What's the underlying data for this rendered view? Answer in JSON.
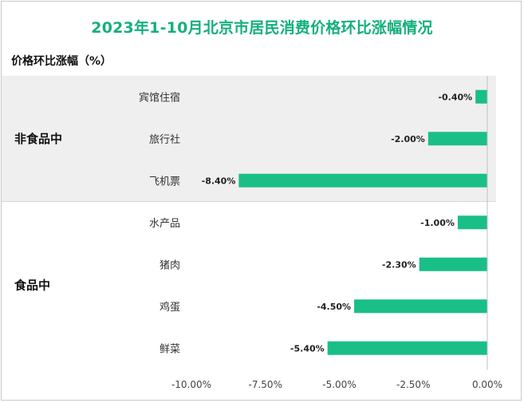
{
  "chart_data": {
    "type": "bar",
    "orientation": "horizontal",
    "title": "2023年1-10月北京市居民消费价格环比涨幅情况",
    "ylabel": "价格环比涨幅（%）",
    "xlim": [
      -10,
      0
    ],
    "xticks": [
      -10,
      -7.5,
      -5,
      -2.5,
      0
    ],
    "xtick_labels": [
      "-10.00%",
      "-7.50%",
      "-5.00%",
      "-2.50%",
      "0.00%"
    ],
    "bar_color": "#19bf87",
    "groups": [
      {
        "name": "非食品中",
        "shaded": true,
        "categories": [
          "宾馆住宿",
          "旅行社",
          "飞机票"
        ],
        "values": [
          -0.4,
          -2.0,
          -8.4
        ],
        "labels": [
          "-0.40%",
          "-2.00%",
          "-8.40%"
        ]
      },
      {
        "name": "食品中",
        "shaded": false,
        "categories": [
          "水产品",
          "猪肉",
          "鸡蛋",
          "鲜菜"
        ],
        "values": [
          -1.0,
          -2.3,
          -4.5,
          -5.4
        ],
        "labels": [
          "-1.00%",
          "-2.30%",
          "-4.50%",
          "-5.40%"
        ]
      }
    ]
  }
}
